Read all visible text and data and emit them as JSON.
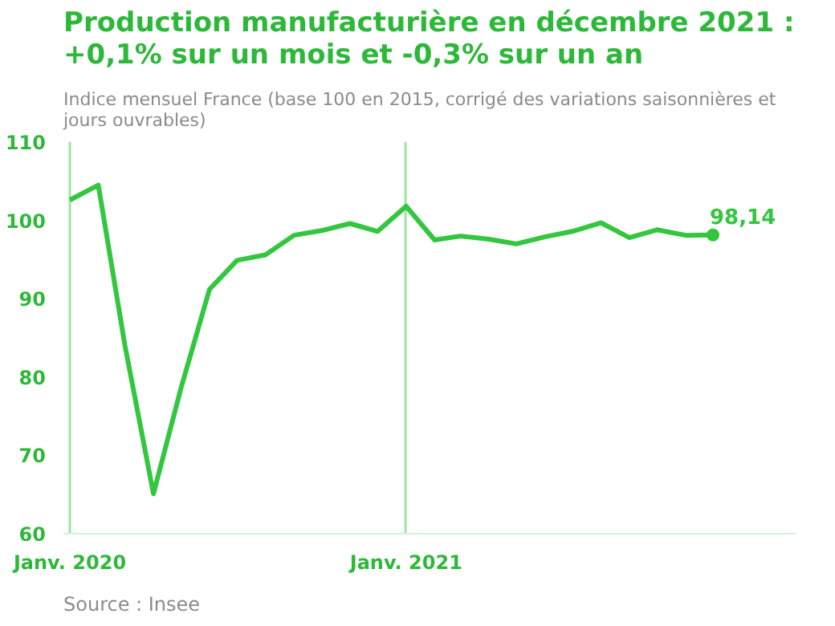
{
  "chart_data": {
    "type": "line",
    "title": "Production manufacturière en décembre 2021 : +0,1% sur un mois et -0,3% sur un an",
    "subtitle": "Indice mensuel France (base 100 en 2015, corrigé des variations saisonnières et jours ouvrables)",
    "x": [
      "2020-01",
      "2020-02",
      "2020-03",
      "2020-04",
      "2020-05",
      "2020-06",
      "2020-07",
      "2020-08",
      "2020-09",
      "2020-10",
      "2020-11",
      "2020-12",
      "2021-01",
      "2021-02",
      "2021-03",
      "2021-04",
      "2021-05",
      "2021-06",
      "2021-07",
      "2021-08",
      "2021-09",
      "2021-10",
      "2021-11",
      "2021-12"
    ],
    "series": [
      {
        "color": "#33c63f",
        "values": [
          102.6,
          104.5,
          84,
          65.1,
          78.6,
          91.2,
          94.9,
          95.6,
          98.1,
          98.7,
          99.6,
          98.6,
          101.8,
          97.5,
          98.0,
          97.6,
          97.0,
          97.9,
          98.6,
          99.7,
          97.8,
          98.8,
          98.1,
          98.14
        ],
        "value_labels": [
          null,
          null,
          null,
          null,
          null,
          null,
          null,
          null,
          null,
          null,
          null,
          null,
          null,
          null,
          null,
          null,
          null,
          null,
          null,
          null,
          null,
          null,
          null,
          "98,14"
        ]
      }
    ],
    "xlim": [
      "2019-12-25",
      "2022-03"
    ],
    "xticks": [
      {
        "value": "2020-01",
        "label": "Janv. 2020"
      },
      {
        "value": "2021-01",
        "label": "Janv. 2021"
      }
    ],
    "ylim": [
      60,
      110
    ],
    "yticks": [
      60,
      70,
      80,
      90,
      100,
      110
    ],
    "grid": "x",
    "marker": "none",
    "line_style": "solid",
    "annotations": [
      "Source : Insee"
    ]
  }
}
